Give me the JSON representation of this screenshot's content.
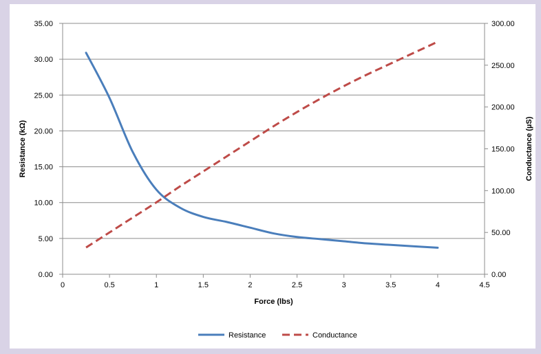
{
  "chart_data": {
    "type": "line",
    "xlabel": "Force (lbs)",
    "ylabel_left": "Resistance (kΩ)",
    "ylabel_right": "Conductance (µS)",
    "xlim": [
      0,
      4.5
    ],
    "ylim_left": [
      0,
      35
    ],
    "ylim_right": [
      0,
      300
    ],
    "x_ticks": [
      "0",
      "0.5",
      "1",
      "1.5",
      "2",
      "2.5",
      "3",
      "3.5",
      "4",
      "4.5"
    ],
    "y_left_ticks": [
      "0.00",
      "5.00",
      "10.00",
      "15.00",
      "20.00",
      "25.00",
      "30.00",
      "35.00"
    ],
    "y_right_ticks": [
      "0.00",
      "50.00",
      "100.00",
      "150.00",
      "200.00",
      "250.00",
      "300.00"
    ],
    "grid": "horizontal",
    "legend_position": "bottom",
    "series": [
      {
        "name": "Resistance",
        "axis": "left",
        "color": "#4a7ebb",
        "style": "solid",
        "x": [
          0.25,
          0.5,
          0.75,
          1.0,
          1.25,
          1.5,
          1.75,
          2.0,
          2.25,
          2.5,
          2.75,
          3.0,
          3.25,
          3.5,
          3.75,
          4.0
        ],
        "y": [
          30.9,
          24.6,
          17.0,
          11.8,
          9.3,
          8.0,
          7.3,
          6.5,
          5.7,
          5.2,
          4.9,
          4.6,
          4.3,
          4.1,
          3.9,
          3.7
        ]
      },
      {
        "name": "Conductance",
        "axis": "right",
        "color": "#be4b48",
        "style": "dashed",
        "x": [
          0.25,
          0.5,
          0.75,
          1.0,
          1.25,
          1.5,
          1.75,
          2.0,
          2.25,
          2.5,
          2.75,
          3.0,
          3.25,
          3.5,
          3.75,
          4.0
        ],
        "y": [
          32,
          50,
          68,
          86,
          105,
          123,
          141,
          159,
          177,
          194,
          210,
          225,
          239,
          252,
          265,
          278
        ]
      }
    ]
  }
}
